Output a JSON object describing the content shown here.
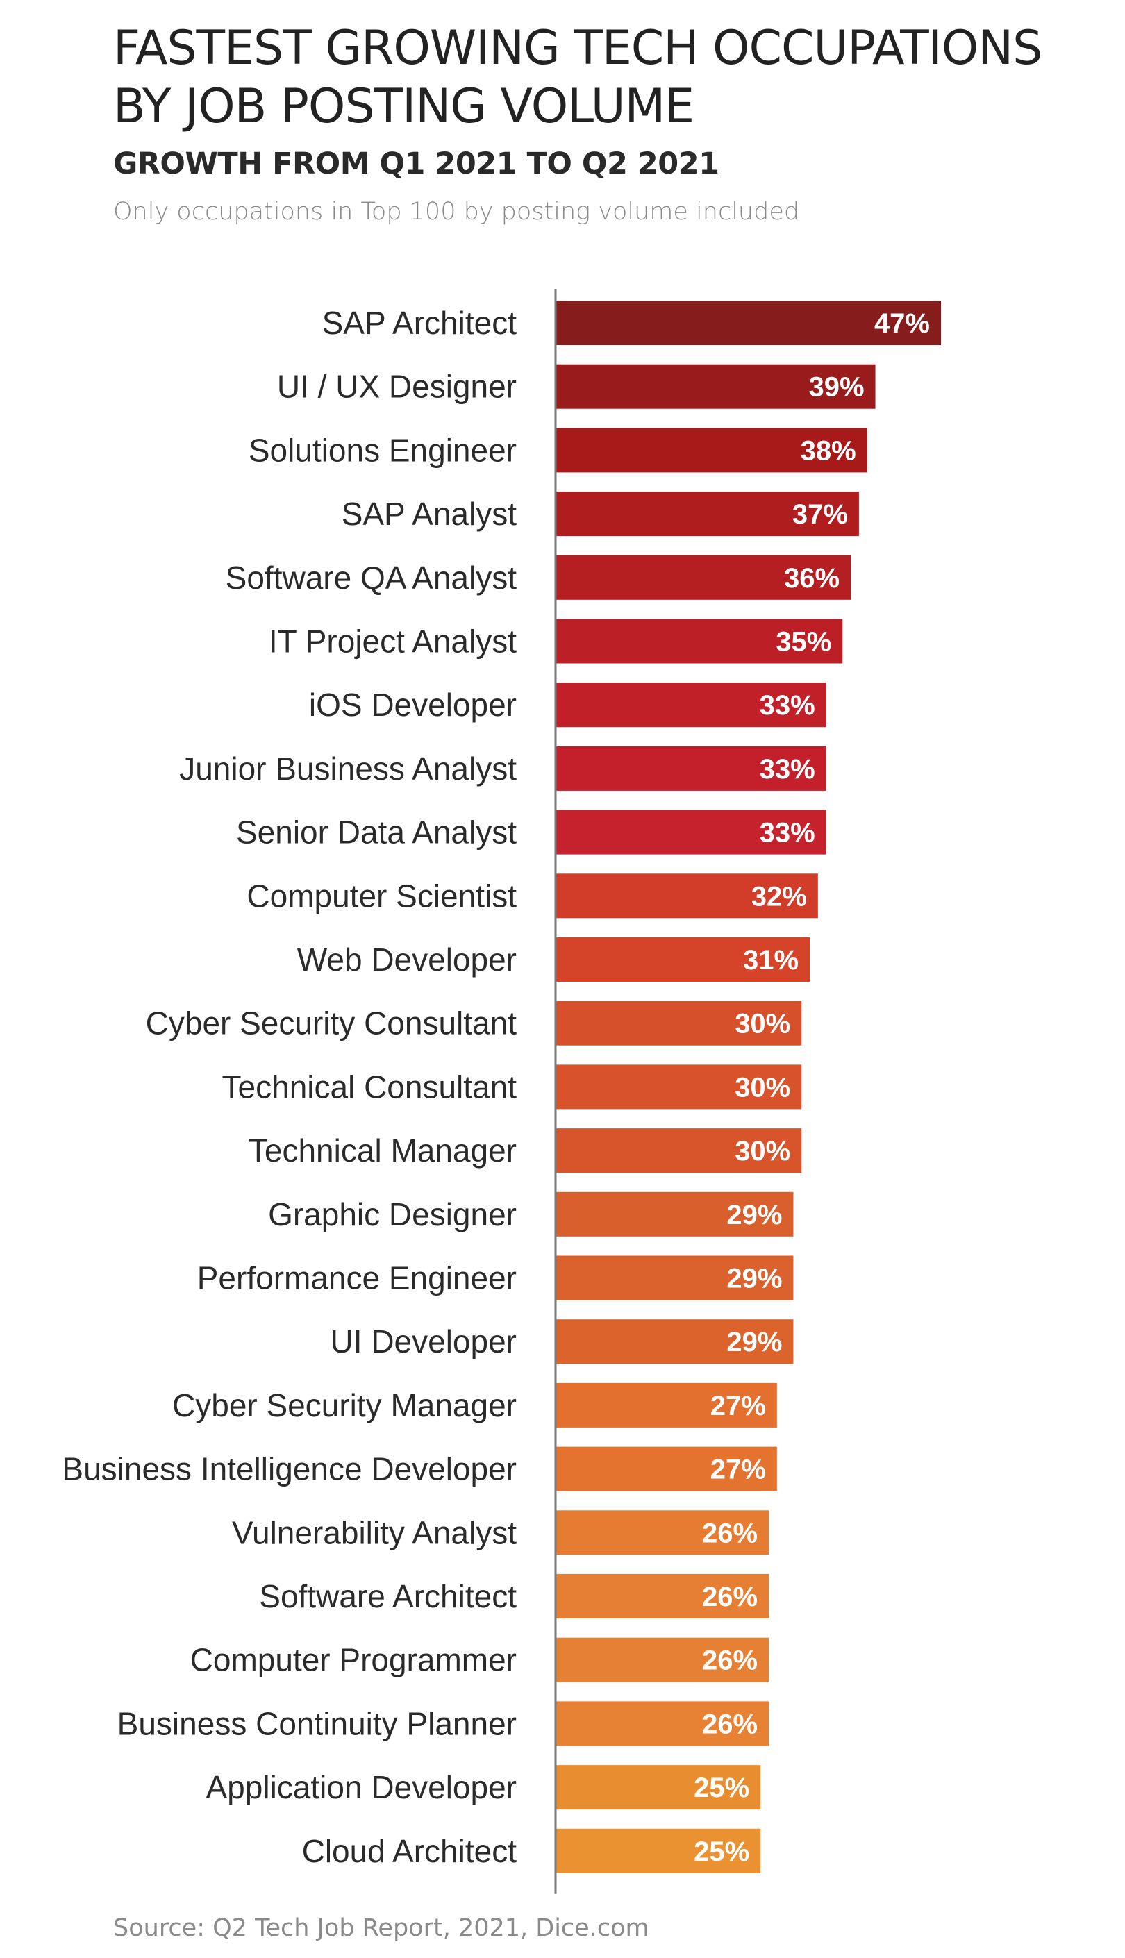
{
  "header": {
    "title": "FASTEST GROWING TECH OCCUPATIONS BY JOB POSTING VOLUME",
    "subtitle": "GROWTH FROM Q1 2021 TO Q2 2021",
    "note": "Only occupations in Top 100 by posting volume included"
  },
  "footer": {
    "source": "Source: Q2 Tech Job Report, 2021, Dice.com"
  },
  "chart_data": {
    "type": "bar",
    "orientation": "horizontal",
    "title": "FASTEST GROWING TECH OCCUPATIONS BY JOB POSTING VOLUME",
    "subtitle": "GROWTH FROM Q1 2021 TO Q2 2021",
    "xlabel": "",
    "ylabel": "",
    "xlim": [
      0,
      47
    ],
    "grid": false,
    "legend": "none",
    "value_format": "percent",
    "categories": [
      "SAP Architect",
      "UI / UX Designer",
      "Solutions Engineer",
      "SAP Analyst",
      "Software QA Analyst",
      "IT Project Analyst",
      "iOS Developer",
      "Junior Business Analyst",
      "Senior Data Analyst",
      "Computer Scientist",
      "Web Developer",
      "Cyber Security Consultant",
      "Technical Consultant",
      "Technical Manager",
      "Graphic Designer",
      "Performance Engineer",
      "UI Developer",
      "Cyber Security Manager",
      "Business Intelligence Developer",
      "Vulnerability Analyst",
      "Software Architect",
      "Computer Programmer",
      "Business Continuity Planner",
      "Application Developer",
      "Cloud Architect"
    ],
    "values": [
      47,
      39,
      38,
      37,
      36,
      35,
      33,
      33,
      33,
      32,
      31,
      30,
      30,
      30,
      29,
      29,
      29,
      27,
      27,
      26,
      26,
      26,
      26,
      25,
      25
    ],
    "data_labels": [
      "47%",
      "39%",
      "38%",
      "37%",
      "36%",
      "35%",
      "33%",
      "33%",
      "33%",
      "32%",
      "31%",
      "30%",
      "30%",
      "30%",
      "29%",
      "29%",
      "29%",
      "27%",
      "27%",
      "26%",
      "26%",
      "26%",
      "26%",
      "25%",
      "25%"
    ],
    "colors": [
      "#861c1c",
      "#991b1b",
      "#a8191a",
      "#b01d1e",
      "#b61f22",
      "#bd1f26",
      "#c22029",
      "#c4202b",
      "#c6222d",
      "#d13d28",
      "#d54429",
      "#d6502b",
      "#d8532b",
      "#d8552c",
      "#d9602c",
      "#db622c",
      "#dc632c",
      "#e47030",
      "#e57330",
      "#e57c32",
      "#e67e33",
      "#e68034",
      "#e78235",
      "#e98e30",
      "#ea9231"
    ],
    "axis_color": "#7a7a7a",
    "label_color": "#2a2a2a",
    "data_label_color": "#ffffff"
  }
}
